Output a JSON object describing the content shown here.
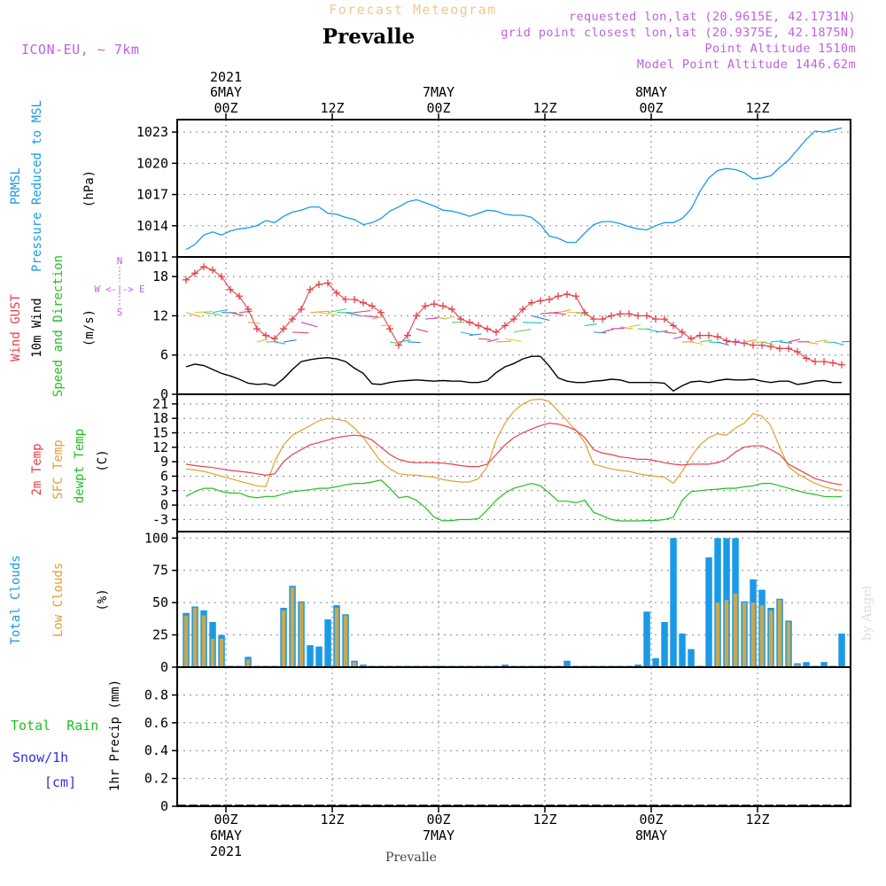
{
  "header": {
    "subtitle": "Forecast Meteogram",
    "title": "Prevalle",
    "model": "ICON-EU, ~ 7km",
    "requested": "requested lon,lat (20.9615E, 42.1731N)",
    "grid_point": "grid point closest lon,lat (20.9375E, 42.1875N)",
    "point_altitude": "Point Altitude 1510m",
    "model_altitude": "Model Point Altitude 1446.62m",
    "footer_title": "Prevalle",
    "credit": "by Angel"
  },
  "time_axis": {
    "ticks": [
      {
        "hour": 0,
        "label": "00Z",
        "day": "6MAY",
        "year": "2021"
      },
      {
        "hour": 12,
        "label": "12Z"
      },
      {
        "hour": 24,
        "label": "00Z",
        "day": "7MAY"
      },
      {
        "hour": 36,
        "label": "12Z"
      },
      {
        "hour": 48,
        "label": "00Z",
        "day": "8MAY"
      },
      {
        "hour": 60,
        "label": "12Z"
      }
    ],
    "range_hours": [
      -5.5,
      70.5
    ]
  },
  "colors": {
    "pressure": "#1a9ae6",
    "gust": "#e6404a",
    "wind": "#000000",
    "temp2m": "#e6404a",
    "sfc": "#e0a030",
    "dewpt": "#20c020",
    "total_clouds": "#1a9ae6",
    "low_clouds": "#c8a850",
    "rain": "#20c020",
    "snow": "#3030e0",
    "title_sub": "#f0c890",
    "meta": "#c060e0"
  },
  "labels": {
    "prmsl": "PRMSL",
    "prmsl_long": "Pressure Reduced to MSL",
    "hpa": "(hPa)",
    "wind_gust": "Wind GUST",
    "wind10m": "10m Wind",
    "wind_speed_dir": "Speed and Direction",
    "ms": "(m/s)",
    "compass_n": "N",
    "compass_s": "S",
    "compass_we": "W <-|-> E",
    "temp2m": "2m Temp",
    "sfc_temp": "SFC Temp",
    "dewpt": "dewpt Temp",
    "c_unit": "(C)",
    "total_clouds": "Total Clouds",
    "low_clouds": "Low Clouds",
    "pct": "(%)",
    "total_rain": "Total  Rain",
    "snow_1h": "Snow/1h",
    "cm": "[cm]",
    "precip_1h": "1hr Precip (mm)"
  },
  "chart_data": [
    {
      "type": "line",
      "name": "PRMSL",
      "ylabel": "(hPa)",
      "yticks": [
        1011,
        1014,
        1017,
        1020,
        1023
      ],
      "ylim": [
        1011,
        1024.2
      ],
      "x": [
        -4.5,
        -3.5,
        -2.5,
        -1.5,
        -0.5,
        0.5,
        1.5,
        2.5,
        3.5,
        4.5,
        5.5,
        6.5,
        7.5,
        8.5,
        9.5,
        10.5,
        11.5,
        12.5,
        13.5,
        14.5,
        15.5,
        16.5,
        17.5,
        18.5,
        19.5,
        20.5,
        21.5,
        22.5,
        23.5,
        24.5,
        25.5,
        26.5,
        27.5,
        28.5,
        29.5,
        30.5,
        31.5,
        32.5,
        33.5,
        34.5,
        35.5,
        36.5,
        37.5,
        38.5,
        39.5,
        40.5,
        41.5,
        42.5,
        43.5,
        44.5,
        45.5,
        46.5,
        47.5,
        48.5,
        49.5,
        50.5,
        51.5,
        52.5,
        53.5,
        54.5,
        55.5,
        56.5,
        57.5,
        58.5,
        59.5,
        60.5,
        61.5,
        62.5,
        63.5,
        64.5,
        65.5,
        66.5,
        67.5,
        68.5,
        69.5
      ],
      "values": [
        1011.7,
        1012.2,
        1013.1,
        1013.4,
        1013.1,
        1013.5,
        1013.7,
        1013.8,
        1014.0,
        1014.5,
        1014.3,
        1014.9,
        1015.3,
        1015.5,
        1015.8,
        1015.8,
        1015.2,
        1015.1,
        1014.8,
        1014.6,
        1014.1,
        1014.3,
        1014.7,
        1015.4,
        1015.8,
        1016.3,
        1016.5,
        1016.2,
        1015.9,
        1015.5,
        1015.4,
        1015.2,
        1014.9,
        1015.2,
        1015.5,
        1015.4,
        1015.1,
        1015.0,
        1015.0,
        1014.8,
        1014.1,
        1013.0,
        1012.8,
        1012.4,
        1012.4,
        1013.3,
        1014.1,
        1014.4,
        1014.4,
        1014.2,
        1013.9,
        1013.7,
        1013.6,
        1014.0,
        1014.3,
        1014.3,
        1014.7,
        1015.6,
        1017.3,
        1018.6,
        1019.3,
        1019.5,
        1019.4,
        1019.1,
        1018.5,
        1018.6,
        1018.8,
        1019.6,
        1020.3,
        1021.3,
        1022.3,
        1023.1,
        1023.0,
        1023.2,
        1023.4
      ]
    },
    {
      "type": "line",
      "name": "Wind",
      "ylabel": "(m/s)",
      "yticks": [
        0,
        6,
        12,
        18
      ],
      "ylim": [
        0,
        21
      ],
      "x": [
        -4.5,
        -3.5,
        -2.5,
        -1.5,
        -0.5,
        0.5,
        1.5,
        2.5,
        3.5,
        4.5,
        5.5,
        6.5,
        7.5,
        8.5,
        9.5,
        10.5,
        11.5,
        12.5,
        13.5,
        14.5,
        15.5,
        16.5,
        17.5,
        18.5,
        19.5,
        20.5,
        21.5,
        22.5,
        23.5,
        24.5,
        25.5,
        26.5,
        27.5,
        28.5,
        29.5,
        30.5,
        31.5,
        32.5,
        33.5,
        34.5,
        35.5,
        36.5,
        37.5,
        38.5,
        39.5,
        40.5,
        41.5,
        42.5,
        43.5,
        44.5,
        45.5,
        46.5,
        47.5,
        48.5,
        49.5,
        50.5,
        51.5,
        52.5,
        53.5,
        54.5,
        55.5,
        56.5,
        57.5,
        58.5,
        59.5,
        60.5,
        61.5,
        62.5,
        63.5,
        64.5,
        65.5,
        66.5,
        67.5,
        68.5,
        69.5
      ],
      "series": [
        {
          "name": "Wind GUST",
          "values": [
            17.5,
            18.5,
            19.5,
            19,
            18,
            16,
            15,
            13,
            10,
            9,
            8.5,
            10,
            11.5,
            13,
            16,
            16.8,
            17,
            15.5,
            14.5,
            14.5,
            14,
            13.5,
            12.5,
            10,
            7.5,
            9,
            12,
            13.5,
            13.8,
            13.5,
            13,
            11.5,
            11,
            10.5,
            10,
            9.5,
            10.5,
            11.5,
            13,
            14,
            14.3,
            14.5,
            15,
            15.3,
            15,
            12.5,
            11.5,
            11.5,
            12,
            12.3,
            12.3,
            12,
            12,
            11.5,
            11.5,
            10.5,
            9.5,
            8.5,
            9,
            9,
            8.8,
            8.2,
            8,
            7.8,
            7.5,
            7.5,
            7.3,
            7,
            7,
            6.5,
            5.5,
            5,
            5,
            4.8,
            4.5
          ]
        },
        {
          "name": "10m Wind",
          "values": [
            4.2,
            4.6,
            4.4,
            3.8,
            3.2,
            2.8,
            2.3,
            1.7,
            1.5,
            1.6,
            1.3,
            2.4,
            3.8,
            5,
            5.3,
            5.5,
            5.6,
            5.4,
            5,
            4,
            3.2,
            1.6,
            1.5,
            1.8,
            2,
            2.1,
            2.2,
            2.1,
            2.0,
            2.1,
            2.0,
            2.0,
            1.8,
            1.8,
            2.1,
            3.3,
            4.2,
            4.7,
            5.4,
            5.8,
            5.8,
            4.3,
            2.5,
            2.0,
            1.8,
            1.8,
            2.0,
            2.1,
            2.3,
            2.2,
            1.8,
            1.8,
            1.8,
            1.8,
            1.7,
            0.5,
            1.3,
            1.9,
            2.0,
            1.8,
            2.1,
            2.3,
            2.2,
            2.2,
            2.3,
            2.0,
            1.8,
            2.0,
            2.0,
            1.5,
            1.7,
            2.0,
            2.1,
            1.8,
            1.8
          ]
        }
      ]
    },
    {
      "type": "line",
      "name": "Temperatures",
      "ylabel": "(C)",
      "yticks": [
        -3,
        0,
        3,
        6,
        9,
        12,
        15,
        18,
        21
      ],
      "ylim": [
        -5.5,
        23
      ],
      "x": [
        -4.5,
        -3.5,
        -2.5,
        -1.5,
        -0.5,
        0.5,
        1.5,
        2.5,
        3.5,
        4.5,
        5.5,
        6.5,
        7.5,
        8.5,
        9.5,
        10.5,
        11.5,
        12.5,
        13.5,
        14.5,
        15.5,
        16.5,
        17.5,
        18.5,
        19.5,
        20.5,
        21.5,
        22.5,
        23.5,
        24.5,
        25.5,
        26.5,
        27.5,
        28.5,
        29.5,
        30.5,
        31.5,
        32.5,
        33.5,
        34.5,
        35.5,
        36.5,
        37.5,
        38.5,
        39.5,
        40.5,
        41.5,
        42.5,
        43.5,
        44.5,
        45.5,
        46.5,
        47.5,
        48.5,
        49.5,
        50.5,
        51.5,
        52.5,
        53.5,
        54.5,
        55.5,
        56.5,
        57.5,
        58.5,
        59.5,
        60.5,
        61.5,
        62.5,
        63.5,
        64.5,
        65.5,
        66.5,
        67.5,
        68.5,
        69.5
      ],
      "series": [
        {
          "name": "2m Temp",
          "values": [
            8.5,
            8.2,
            8,
            7.8,
            7.5,
            7.2,
            7,
            6.8,
            6.5,
            6.2,
            6.5,
            9,
            10.5,
            11.5,
            12.5,
            13,
            13.5,
            14,
            14.3,
            14.5,
            14.3,
            13.5,
            12,
            10.5,
            9.5,
            9,
            8.8,
            8.8,
            8.8,
            8.7,
            8.5,
            8.2,
            8,
            8,
            8.5,
            10.5,
            12.5,
            14,
            15,
            15.8,
            16.5,
            17,
            16.8,
            16.3,
            15.5,
            14,
            11.5,
            10.8,
            10.5,
            10,
            9.8,
            9.5,
            9.5,
            9.2,
            8.8,
            8.5,
            8.3,
            8.5,
            8.5,
            8.5,
            8.8,
            9.5,
            11,
            12,
            12.3,
            12.3,
            11.5,
            10.5,
            8.5,
            7.5,
            6.5,
            5.5,
            5,
            4.5,
            4.2
          ]
        },
        {
          "name": "SFC Temp",
          "values": [
            7.5,
            7.3,
            7,
            6.5,
            6,
            5.5,
            5,
            4.5,
            4,
            3.8,
            9,
            12.5,
            14.5,
            15.5,
            16.5,
            17.5,
            18,
            17.8,
            17.5,
            16,
            14,
            11.5,
            9,
            7.5,
            6.5,
            6.3,
            6.2,
            6,
            5.8,
            5.3,
            5,
            4.8,
            4.8,
            5.5,
            8,
            13.5,
            17,
            19.5,
            21,
            21.8,
            22,
            21.5,
            19.5,
            17.5,
            15.5,
            13,
            8.5,
            8,
            7.5,
            7.2,
            7,
            6.5,
            6.2,
            6,
            5.8,
            4.5,
            7,
            10,
            12.5,
            14,
            14.8,
            14.5,
            16,
            17,
            19,
            18.5,
            16.5,
            12,
            8,
            6.5,
            5.5,
            4.5,
            3.8,
            3.3,
            3.0
          ]
        },
        {
          "name": "dewpt Temp",
          "values": [
            1.8,
            2.8,
            3.5,
            3.5,
            2.8,
            2.5,
            2.5,
            1.8,
            1.5,
            1.8,
            1.8,
            2.3,
            2.8,
            3.0,
            3.2,
            3.5,
            3.5,
            3.8,
            4.2,
            4.5,
            4.5,
            4.8,
            5.2,
            3.5,
            1.5,
            1.8,
            1.0,
            -0.5,
            -2.5,
            -3.3,
            -3.2,
            -3.0,
            -3.0,
            -2.8,
            -1.0,
            1.0,
            2.5,
            3.5,
            4.0,
            4.5,
            4.0,
            2.5,
            0.8,
            0.8,
            0.5,
            1.0,
            -1.5,
            -2.2,
            -3.0,
            -3.3,
            -3.3,
            -3.3,
            -3.2,
            -3.2,
            -3.0,
            -2.5,
            1.0,
            2.8,
            3.0,
            3.2,
            3.3,
            3.5,
            3.5,
            3.8,
            4.0,
            4.5,
            4.5,
            4.0,
            3.5,
            3.0,
            2.5,
            2.2,
            1.8,
            1.7,
            1.8
          ]
        }
      ]
    },
    {
      "type": "bar",
      "name": "Clouds",
      "ylabel": "(%)",
      "yticks": [
        0,
        25,
        50,
        75,
        100
      ],
      "ylim": [
        0,
        105
      ],
      "x": [
        -4.5,
        -3.5,
        -2.5,
        -1.5,
        -0.5,
        0.5,
        1.5,
        2.5,
        3.5,
        4.5,
        5.5,
        6.5,
        7.5,
        8.5,
        9.5,
        10.5,
        11.5,
        12.5,
        13.5,
        14.5,
        15.5,
        16.5,
        17.5,
        18.5,
        19.5,
        20.5,
        21.5,
        22.5,
        23.5,
        24.5,
        25.5,
        26.5,
        27.5,
        28.5,
        29.5,
        30.5,
        31.5,
        32.5,
        33.5,
        34.5,
        35.5,
        36.5,
        37.5,
        38.5,
        39.5,
        40.5,
        41.5,
        42.5,
        43.5,
        44.5,
        45.5,
        46.5,
        47.5,
        48.5,
        49.5,
        50.5,
        51.5,
        52.5,
        53.5,
        54.5,
        55.5,
        56.5,
        57.5,
        58.5,
        59.5,
        60.5,
        61.5,
        62.5,
        63.5,
        64.5,
        65.5,
        66.5,
        67.5,
        68.5,
        69.5
      ],
      "series": [
        {
          "name": "Total Clouds",
          "values": [
            42,
            47,
            44,
            35,
            25,
            1,
            1,
            8,
            1,
            1,
            1,
            46,
            63,
            51,
            17,
            16,
            37,
            48,
            41,
            5,
            2,
            1,
            1,
            1,
            1,
            1,
            1,
            1,
            1,
            1,
            1,
            1,
            1,
            1,
            1,
            1,
            2,
            1,
            1,
            1,
            1,
            1,
            1,
            5,
            1,
            1,
            1,
            1,
            1,
            1,
            1,
            2,
            43,
            7,
            35,
            100,
            26,
            14,
            1,
            85,
            100,
            100,
            100,
            51,
            68,
            60,
            46,
            53,
            36,
            3,
            4,
            1,
            4,
            1,
            26
          ]
        },
        {
          "name": "Low Clouds",
          "values": [
            40,
            46,
            40,
            22,
            22,
            0,
            0,
            6,
            0,
            0,
            0,
            44,
            62,
            50,
            0,
            0,
            0,
            46,
            40,
            4,
            1,
            0,
            0,
            0,
            0,
            0,
            0,
            0,
            0,
            0,
            0,
            0,
            0,
            0,
            0,
            0,
            0,
            0,
            0,
            0,
            0,
            0,
            0,
            0,
            0,
            0,
            0,
            0,
            0,
            0,
            0,
            0,
            0,
            0,
            0,
            0,
            0,
            0,
            0,
            0,
            50,
            52,
            57,
            50,
            50,
            48,
            44,
            52,
            35,
            2,
            0,
            0,
            0,
            0,
            0
          ]
        }
      ]
    },
    {
      "type": "bar",
      "name": "Precipitation",
      "ylabel": "1hr Precip (mm)",
      "yticks": [
        0,
        0.2,
        0.4,
        0.6,
        0.8
      ],
      "ylim": [
        0,
        1.0
      ],
      "series": []
    }
  ]
}
